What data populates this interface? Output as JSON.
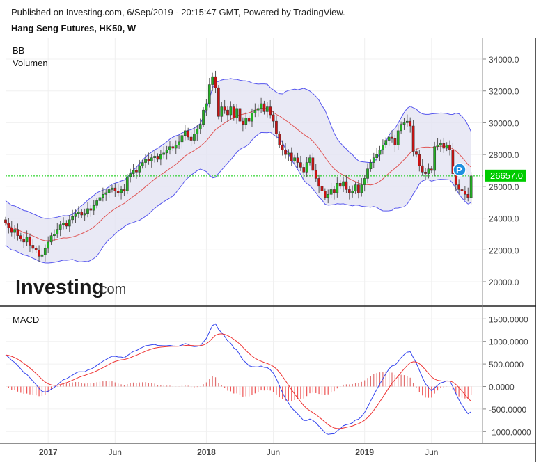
{
  "header": {
    "published": "Published on Investing.com, 6/Sep/2019 - 20:15:47 GMT, Powered by TradingView.",
    "title": "Hang Seng Futures, HK50, W"
  },
  "logo": {
    "text": "Investing",
    "suffix": ".com"
  },
  "colors": {
    "up": "#22b022",
    "down": "#cc1111",
    "band": "#5555ee",
    "band_fill": "#e3e3f2",
    "basis": "#e05555",
    "price_line": "#00cc00",
    "macd": "#3344ee",
    "signal": "#ee3333"
  },
  "chart_data": [
    {
      "type": "candlestick",
      "title": "Hang Seng Futures, HK50, W",
      "indicators": [
        "BB",
        "Volumen"
      ],
      "x_tick_labels": [
        "2017",
        "Jun",
        "2018",
        "Jun",
        "2019",
        "Jun"
      ],
      "x_tick_weeks": [
        14,
        36,
        66,
        88,
        118,
        140
      ],
      "y_ticks": [
        34000,
        32000,
        30000,
        28000,
        26000,
        24000,
        22000,
        20000
      ],
      "y_tick_labels": [
        "34000.0",
        "32000.0",
        "30000.0",
        "28000.0",
        "26000.0",
        "24000.0",
        "22000.0",
        "20000.0"
      ],
      "ylim": [
        19000,
        35000
      ],
      "last_price": 26657,
      "last_price_label": "26657.0",
      "marker_label": "P",
      "closes": [
        23700,
        23400,
        23100,
        23300,
        22900,
        22700,
        22500,
        22800,
        22300,
        22100,
        22000,
        21600,
        21700,
        22100,
        22500,
        22900,
        23000,
        23300,
        23600,
        23700,
        23500,
        23900,
        24100,
        24300,
        24400,
        24200,
        24300,
        24600,
        24500,
        24800,
        25100,
        25300,
        25500,
        25600,
        25800,
        25900,
        25700,
        25600,
        25800,
        25700,
        26600,
        26800,
        27000,
        26900,
        27300,
        27500,
        27700,
        27600,
        27800,
        27900,
        27700,
        28000,
        28100,
        28300,
        28500,
        28400,
        28600,
        28800,
        29200,
        29500,
        29100,
        28900,
        29300,
        29600,
        29900,
        30800,
        31200,
        32400,
        32900,
        32200,
        30400,
        31000,
        30800,
        30500,
        31000,
        30300,
        30900,
        30100,
        29900,
        30300,
        30100,
        30600,
        30800,
        30900,
        31200,
        30700,
        31000,
        30500,
        30100,
        29300,
        28600,
        28300,
        28000,
        28100,
        27600,
        27800,
        27500,
        27200,
        26900,
        27500,
        27800,
        27000,
        26500,
        26000,
        25700,
        25300,
        25500,
        25800,
        25600,
        26200,
        26000,
        26300,
        25800,
        25600,
        25700,
        26100,
        25600,
        26100,
        26500,
        27100,
        27500,
        27800,
        28000,
        28300,
        28600,
        28900,
        29100,
        29000,
        28600,
        29500,
        29900,
        30000,
        30100,
        29800,
        28200,
        28000,
        27300,
        26900,
        26800,
        27100,
        27000,
        28500,
        28600,
        28700,
        28400,
        28600,
        28300,
        26800,
        26100,
        25800,
        25700,
        25500,
        25300,
        26657
      ],
      "grid": true
    },
    {
      "type": "line",
      "title": "MACD",
      "y_ticks": [
        1500,
        1000,
        500,
        0,
        -500,
        -1000
      ],
      "y_tick_labels": [
        "1500.0000",
        "1000.0000",
        "500.0000",
        "0.0000",
        "-500.0000",
        "-1000.0000"
      ],
      "ylim": [
        -1250,
        1730
      ],
      "series": [
        "MACD",
        "Signal",
        "Histogram"
      ],
      "grid": true
    }
  ]
}
